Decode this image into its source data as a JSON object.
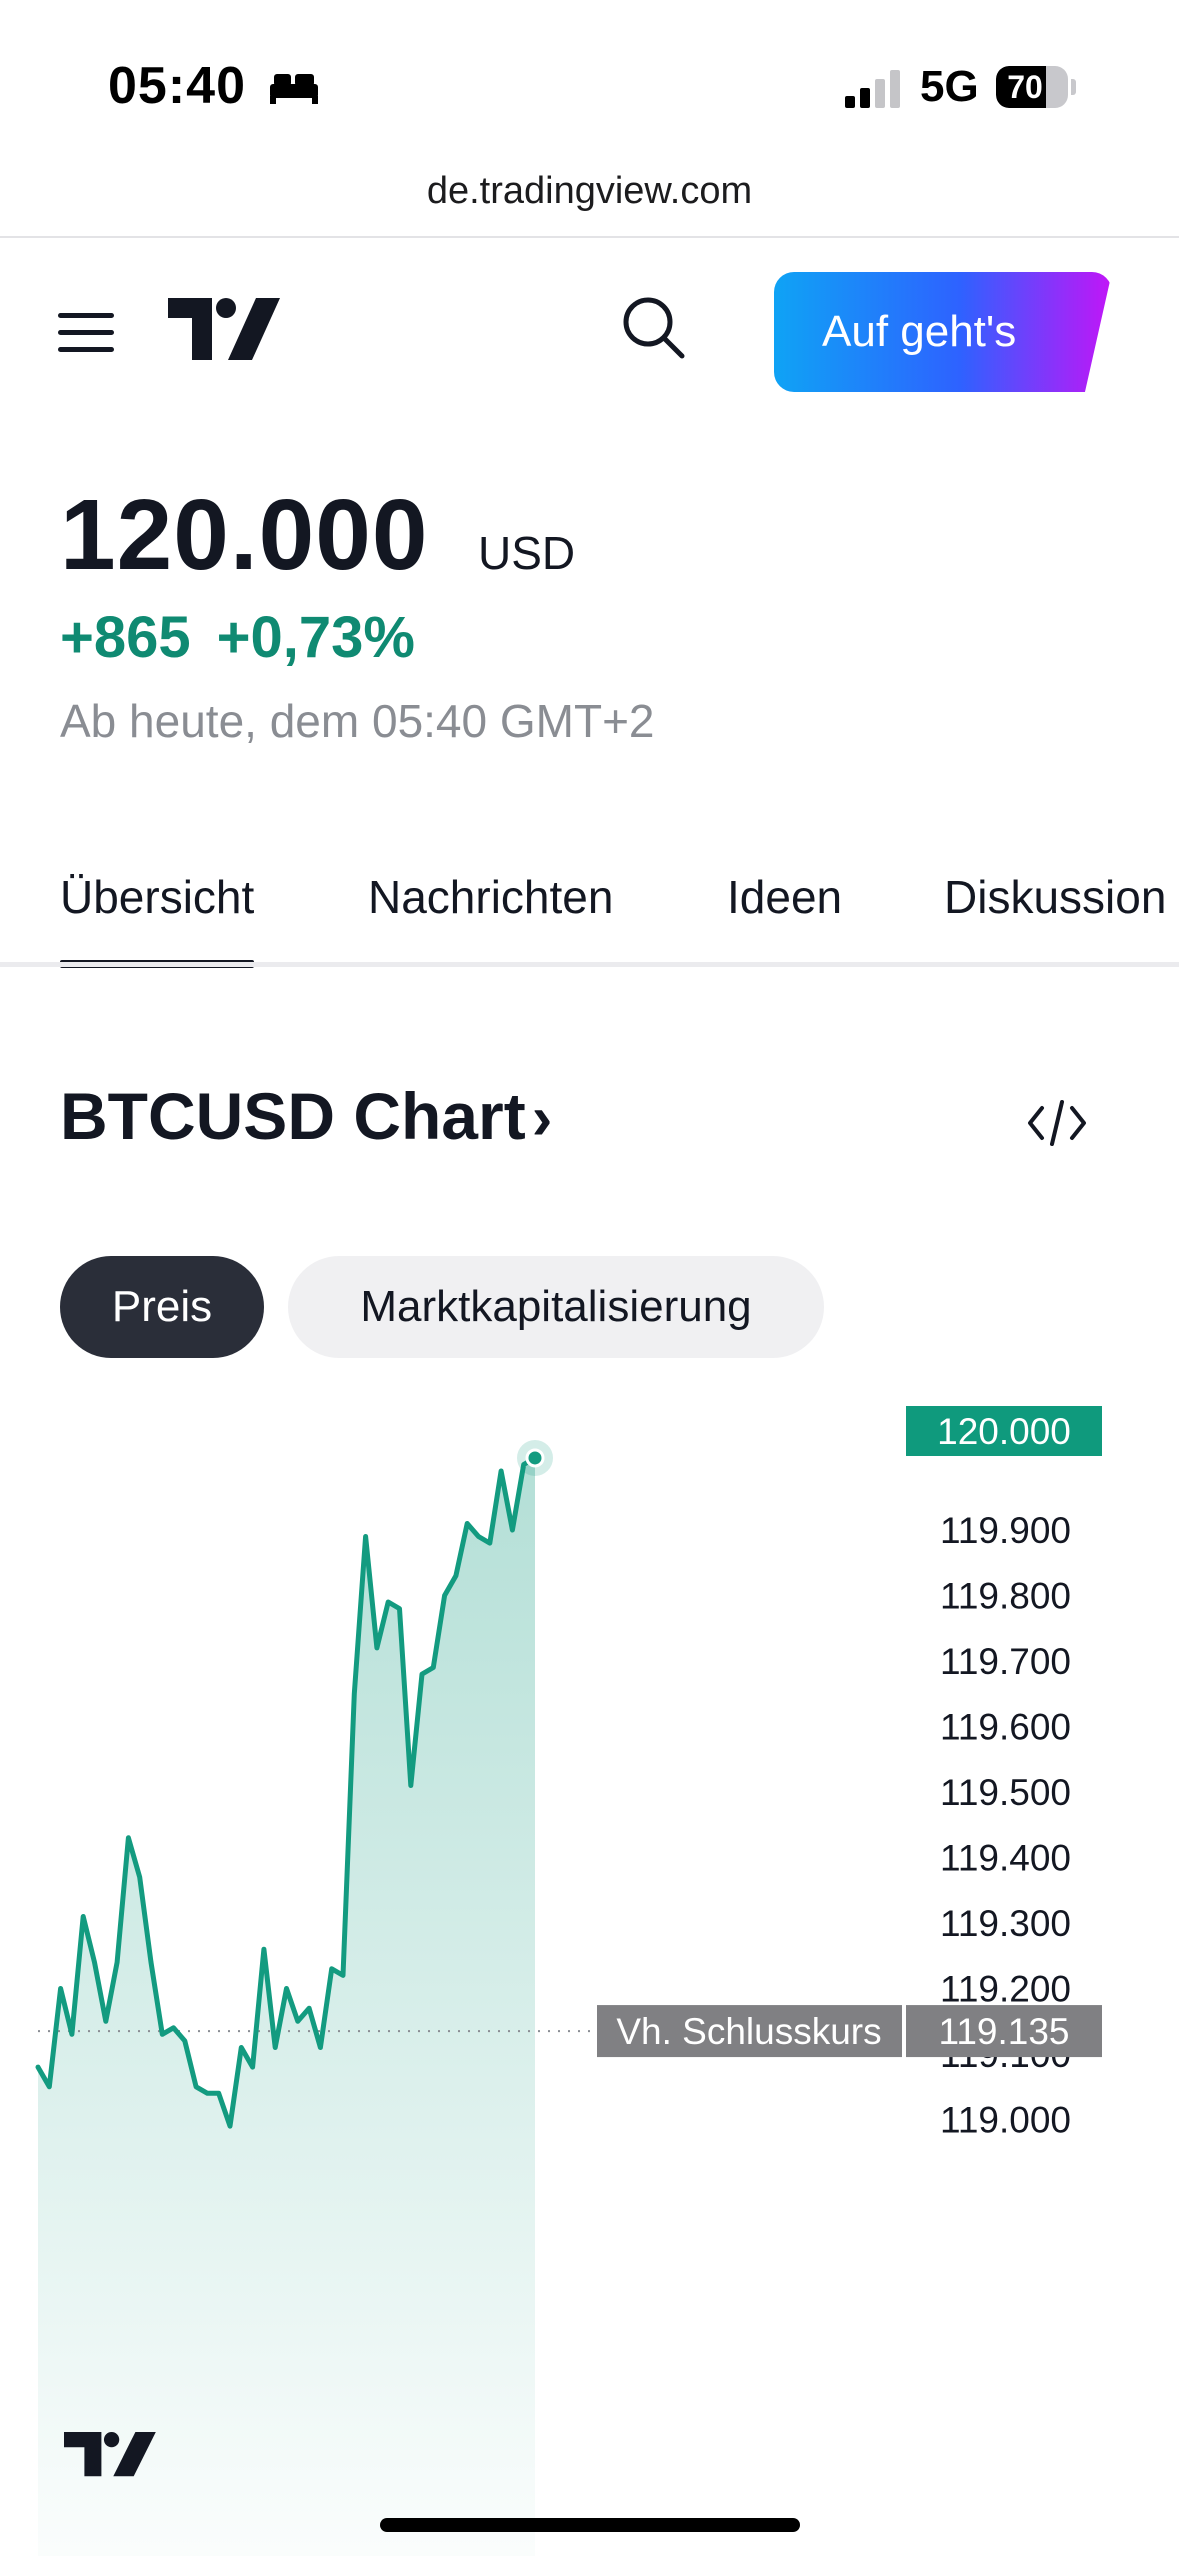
{
  "status_bar": {
    "time": "05:40",
    "network": "5G",
    "battery": "70",
    "battery_level": 0.7
  },
  "browser": {
    "url": "de.tradingview.com"
  },
  "header": {
    "cta_label": "Auf geht's",
    "icons": [
      "menu-icon",
      "tradingview-logo",
      "search-icon"
    ]
  },
  "quote": {
    "price": "120.000",
    "currency": "USD",
    "change_abs": "+865",
    "change_pct": "+0,73%",
    "timestamp": "Ab heute, dem 05:40 GMT+2",
    "positive_color": "#0f8a72"
  },
  "tabs": [
    {
      "label": "Übersicht",
      "active": true
    },
    {
      "label": "Nachrichten",
      "active": false
    },
    {
      "label": "Ideen",
      "active": false
    },
    {
      "label": "Diskussion",
      "active": false
    }
  ],
  "chart_section": {
    "title": "BTCUSD Chart",
    "chevron": "›",
    "pills": [
      {
        "label": "Preis",
        "active": true
      },
      {
        "label": "Marktkapitalisierung",
        "active": false
      }
    ]
  },
  "chart_data": {
    "type": "area",
    "ylim": [
      118980,
      120040
    ],
    "y_ticks": [
      "119.900",
      "119.800",
      "119.700",
      "119.600",
      "119.500",
      "119.400",
      "119.300",
      "119.200",
      "119.100",
      "119.000"
    ],
    "y_tick_values": [
      119900,
      119800,
      119700,
      119600,
      119500,
      119400,
      119300,
      119200,
      119100,
      119000
    ],
    "values": [
      119080,
      119050,
      119200,
      119130,
      119310,
      119240,
      119150,
      119240,
      119430,
      119370,
      119240,
      119130,
      119140,
      119120,
      119050,
      119040,
      119040,
      118990,
      119110,
      119080,
      119260,
      119110,
      119200,
      119150,
      119170,
      119110,
      119230,
      119220,
      119650,
      119890,
      119720,
      119790,
      119780,
      119510,
      119680,
      119690,
      119800,
      119830,
      119910,
      119890,
      119880,
      119990,
      119900,
      120000,
      120010
    ],
    "last_label": "120.000",
    "prev_close_label": "Vh. Schlusskurs",
    "prev_close_value": "119.135",
    "prev_close": 119135,
    "line_color": "#139b80",
    "last_color": "#0f9a7d",
    "prev_close_color": "#808083"
  }
}
